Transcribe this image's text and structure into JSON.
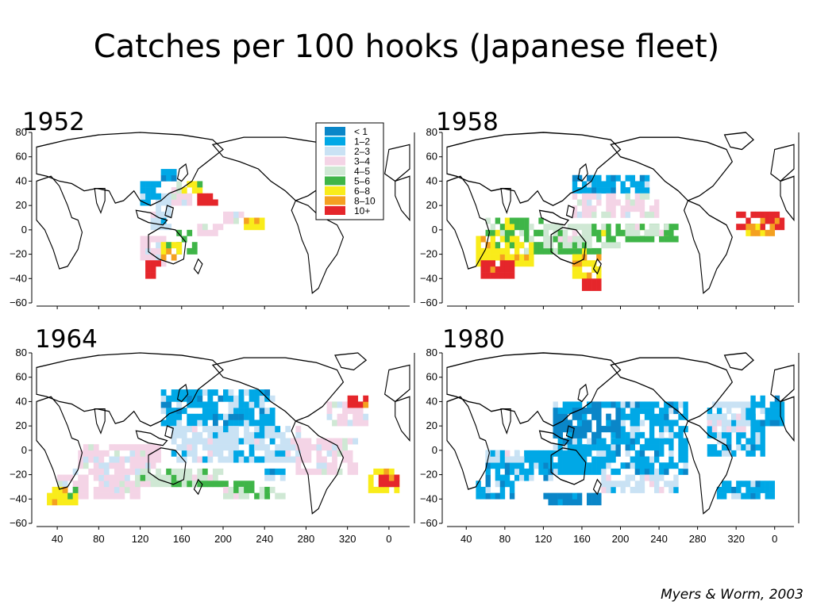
{
  "title": "Catches per 100 hooks (Japanese fleet)",
  "credit": "Myers & Worm, 2003",
  "legend": {
    "entries": [
      {
        "label": "< 1",
        "color": "#0a86c8"
      },
      {
        "label": "1–2",
        "color": "#00a8e6"
      },
      {
        "label": "2–3",
        "color": "#c9e2f4"
      },
      {
        "label": "3–4",
        "color": "#f4d4e6"
      },
      {
        "label": "4–5",
        "color": "#cfe8d4"
      },
      {
        "label": "5–6",
        "color": "#3fb548"
      },
      {
        "label": "6–8",
        "color": "#f9ec1a"
      },
      {
        "label": "8–10",
        "color": "#f4a021"
      },
      {
        "label": "10+",
        "color": "#e5262b"
      }
    ]
  },
  "axes": {
    "lat_ticks": [
      80,
      60,
      40,
      20,
      0,
      -20,
      -40,
      -60
    ],
    "lon_ticks": [
      "40",
      "80",
      "120",
      "160",
      "200",
      "240",
      "280",
      "320",
      "0"
    ],
    "lat_range": [
      -60,
      80
    ],
    "lon_range": [
      20,
      380
    ]
  },
  "panels": [
    {
      "year": "1952"
    },
    {
      "year": "1958"
    },
    {
      "year": "1964"
    },
    {
      "year": "1980"
    }
  ],
  "map_colors": {
    "land": "#ffffff",
    "coast": "#000000"
  }
}
